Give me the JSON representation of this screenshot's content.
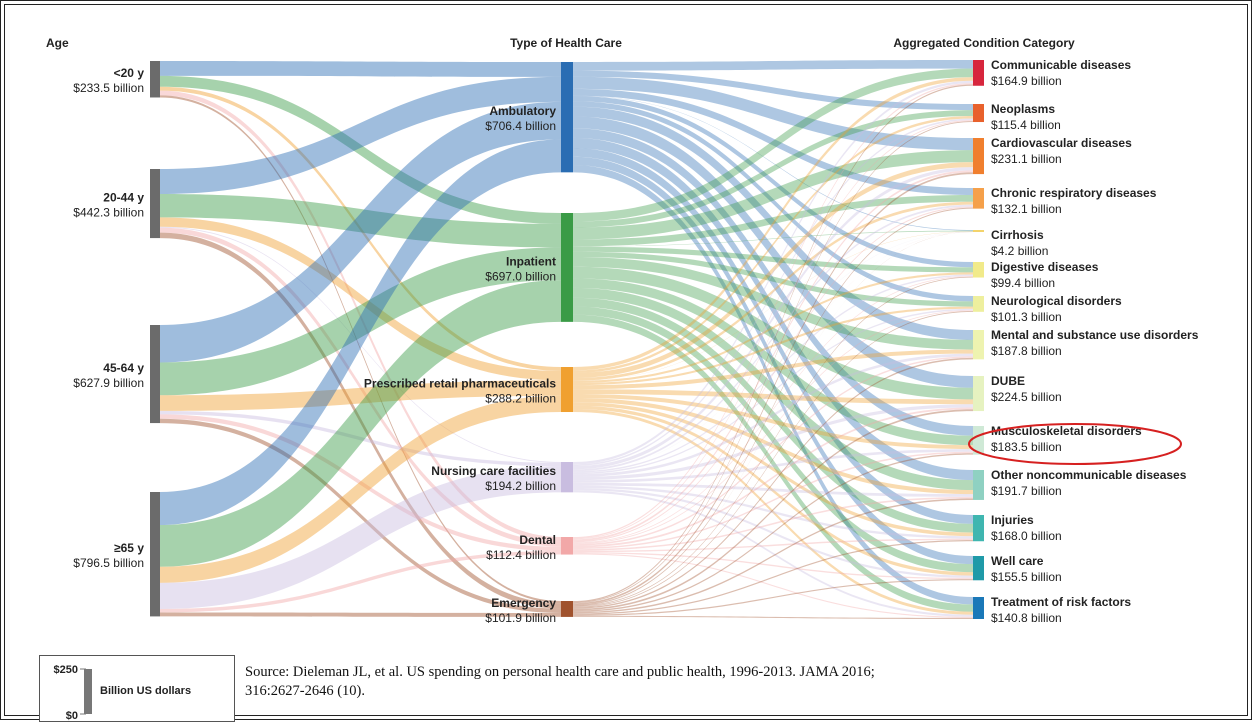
{
  "headers": {
    "age": "Age",
    "care": "Type of Health Care",
    "condition": "Aggregated Condition Category"
  },
  "chart_data": {
    "type": "sankey",
    "units": "Billion US dollars",
    "age_groups": [
      {
        "label": "<20 y",
        "value_label": "$233.5 billion",
        "value": 233.5
      },
      {
        "label": "20-44 y",
        "value_label": "$442.3 billion",
        "value": 442.3
      },
      {
        "label": "45-64 y",
        "value_label": "$627.9 billion",
        "value": 627.9
      },
      {
        "label": "≥65 y",
        "value_label": "$796.5 billion",
        "value": 796.5
      }
    ],
    "care_types": [
      {
        "label": "Ambulatory",
        "value_label": "$706.4 billion",
        "value": 706.4,
        "color": "#2a6db3"
      },
      {
        "label": "Inpatient",
        "value_label": "$697.0 billion",
        "value": 697.0,
        "color": "#3a9b46"
      },
      {
        "label": "Prescribed retail pharmaceuticals",
        "value_label": "$288.2 billion",
        "value": 288.2,
        "color": "#f0a030"
      },
      {
        "label": "Nursing care facilities",
        "value_label": "$194.2 billion",
        "value": 194.2,
        "color": "#c9bde0"
      },
      {
        "label": "Dental",
        "value_label": "$112.4 billion",
        "value": 112.4,
        "color": "#f2a8a8"
      },
      {
        "label": "Emergency",
        "value_label": "$101.9 billion",
        "value": 101.9,
        "color": "#a0522d"
      }
    ],
    "conditions": [
      {
        "label": "Communicable diseases",
        "value_label": "$164.9 billion",
        "value": 164.9,
        "color": "#d7263d"
      },
      {
        "label": "Neoplasms",
        "value_label": "$115.4 billion",
        "value": 115.4,
        "color": "#e8612c"
      },
      {
        "label": "Cardiovascular diseases",
        "value_label": "$231.1 billion",
        "value": 231.1,
        "color": "#f07f2e"
      },
      {
        "label": "Chronic respiratory diseases",
        "value_label": "$132.1 billion",
        "value": 132.1,
        "color": "#f5a04a"
      },
      {
        "label": "Cirrhosis",
        "value_label": "$4.2 billion",
        "value": 4.2,
        "color": "#f3d36b"
      },
      {
        "label": "Digestive diseases",
        "value_label": "$99.4 billion",
        "value": 99.4,
        "color": "#f1ea8a"
      },
      {
        "label": "Neurological disorders",
        "value_label": "$101.3 billion",
        "value": 101.3,
        "color": "#eeef9e"
      },
      {
        "label": "Mental and substance use disorders",
        "value_label": "$187.8 billion",
        "value": 187.8,
        "color": "#eef3b0"
      },
      {
        "label": "DUBE",
        "value_label": "$224.5 billion",
        "value": 224.5,
        "color": "#e6f2c0"
      },
      {
        "label": "Musculoskeletal disorders",
        "value_label": "$183.5 billion",
        "value": 183.5,
        "color": "#cfe9d6"
      },
      {
        "label": "Other noncommunicable diseases",
        "value_label": "$191.7 billion",
        "value": 191.7,
        "color": "#8fd1c2"
      },
      {
        "label": "Injuries",
        "value_label": "$168.0 billion",
        "value": 168.0,
        "color": "#3fb6b0"
      },
      {
        "label": "Well care",
        "value_label": "$155.5 billion",
        "value": 155.5,
        "color": "#1f9aa8"
      },
      {
        "label": "Treatment of risk factors",
        "value_label": "$140.8 billion",
        "value": 140.8,
        "color": "#1a78b8"
      }
    ],
    "age_to_care_flows": [
      {
        "age": "<20 y",
        "care": "Ambulatory",
        "value": 95
      },
      {
        "age": "<20 y",
        "care": "Inpatient",
        "value": 70
      },
      {
        "age": "<20 y",
        "care": "Prescribed retail pharmaceuticals",
        "value": 25
      },
      {
        "age": "<20 y",
        "care": "Dental",
        "value": 30
      },
      {
        "age": "<20 y",
        "care": "Emergency",
        "value": 13.5
      },
      {
        "age": "20-44 y",
        "care": "Ambulatory",
        "value": 160
      },
      {
        "age": "20-44 y",
        "care": "Inpatient",
        "value": 150
      },
      {
        "age": "20-44 y",
        "care": "Prescribed retail pharmaceuticals",
        "value": 60
      },
      {
        "age": "20-44 y",
        "care": "Nursing care facilities",
        "value": 5
      },
      {
        "age": "20-44 y",
        "care": "Dental",
        "value": 32
      },
      {
        "age": "20-44 y",
        "care": "Emergency",
        "value": 35.3
      },
      {
        "age": "45-64 y",
        "care": "Ambulatory",
        "value": 240
      },
      {
        "age": "45-64 y",
        "care": "Inpatient",
        "value": 210
      },
      {
        "age": "45-64 y",
        "care": "Prescribed retail pharmaceuticals",
        "value": 100
      },
      {
        "age": "45-64 y",
        "care": "Nursing care facilities",
        "value": 22
      },
      {
        "age": "45-64 y",
        "care": "Dental",
        "value": 28
      },
      {
        "age": "45-64 y",
        "care": "Emergency",
        "value": 27.9
      },
      {
        "age": "≥65 y",
        "care": "Ambulatory",
        "value": 211.4
      },
      {
        "age": "≥65 y",
        "care": "Inpatient",
        "value": 267
      },
      {
        "age": "≥65 y",
        "care": "Prescribed retail pharmaceuticals",
        "value": 103.2
      },
      {
        "age": "≥65 y",
        "care": "Nursing care facilities",
        "value": 167.2
      },
      {
        "age": "≥65 y",
        "care": "Dental",
        "value": 22.4
      },
      {
        "age": "≥65 y",
        "care": "Emergency",
        "value": 25.2
      }
    ],
    "highlighted_condition": "Musculoskeletal disorders",
    "highlight_color": "#d62020"
  },
  "scale_legend": {
    "top_label": "$250",
    "bottom_label": "$0",
    "unit_label": "Billion US dollars"
  },
  "source": {
    "line1": "Source: Dieleman JL, et al. US spending on personal health care and public health, 1996-2013. JAMA 2016;",
    "line2": "316:2627-2646 (10)."
  }
}
